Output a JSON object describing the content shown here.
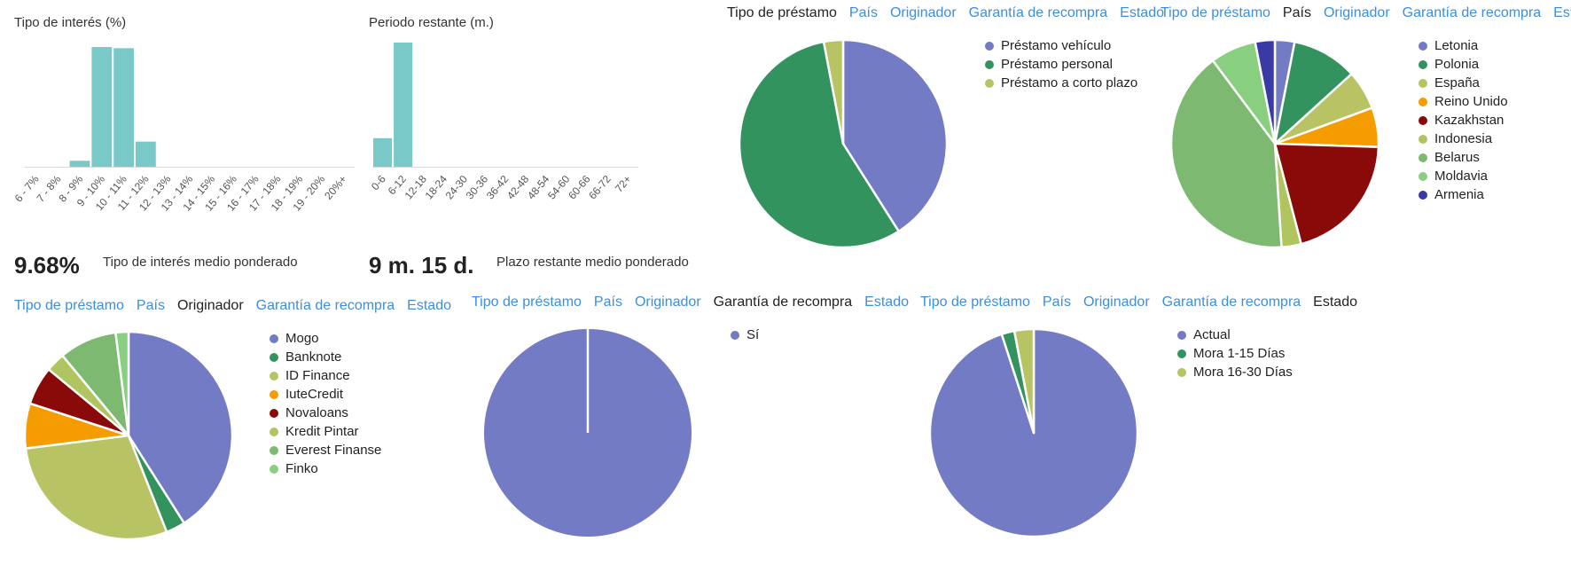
{
  "stats": [
    {
      "value": "9.68%",
      "label": "Tipo de interés medio ponderado"
    },
    {
      "value": "9 m. 15 d.",
      "label": "Plazo restante medio ponderado"
    }
  ],
  "colors": {
    "bar": "#79c9c9",
    "tab_link": "#3b8ee0",
    "tab_active": "#222222"
  },
  "chart_data": [
    {
      "type": "bar",
      "title": "Tipo de interés (%)",
      "categories": [
        "6 - 7%",
        "7 - 8%",
        "8 - 9%",
        "9 - 10%",
        "10 - 11%",
        "11 - 12%",
        "12 - 13%",
        "13 - 14%",
        "14 - 15%",
        "15 - 16%",
        "16 - 17%",
        "17 - 18%",
        "18 - 19%",
        "19 - 20%",
        "20%+"
      ],
      "values": [
        0,
        0,
        5,
        100,
        99,
        21,
        0,
        0,
        0,
        0,
        0,
        0,
        0,
        0,
        0
      ],
      "ylim": [
        0,
        100
      ],
      "grid": false
    },
    {
      "type": "bar",
      "title": "Periodo restante (m.)",
      "categories": [
        "0-6",
        "6-12",
        "12-18",
        "18-24",
        "24-30",
        "30-36",
        "36-42",
        "42-48",
        "48-54",
        "54-60",
        "60-66",
        "66-72",
        "72+"
      ],
      "values": [
        23,
        100,
        0,
        0,
        0,
        0,
        0,
        0,
        0,
        0,
        0,
        0,
        0
      ],
      "ylim": [
        0,
        100
      ],
      "grid": false
    },
    {
      "type": "pie",
      "tabs": [
        "Tipo de préstamo",
        "País",
        "Originador",
        "Garantía de recompra",
        "Estado"
      ],
      "active_tab": 0,
      "labels": [
        "Préstamo vehículo",
        "Préstamo personal",
        "Préstamo a corto plazo"
      ],
      "values": [
        41,
        56,
        3
      ],
      "colors": [
        "#737bc4",
        "#33935f",
        "#b8c463"
      ]
    },
    {
      "type": "pie",
      "tabs": [
        "Tipo de préstamo",
        "País",
        "Originador",
        "Garantía de recompra",
        "Estado"
      ],
      "active_tab": 1,
      "labels": [
        "Letonia",
        "Polonia",
        "España",
        "Reino Unido",
        "Kazakhstan",
        "Indonesia",
        "Belarus",
        "Moldavia",
        "Armenia"
      ],
      "values": [
        3,
        10,
        6,
        6,
        20,
        3,
        40,
        7,
        3
      ],
      "colors": [
        "#737bc4",
        "#33935f",
        "#b8c463",
        "#f59c00",
        "#8a0a0a",
        "#b0c460",
        "#7db971",
        "#88cf80",
        "#3a3aa7"
      ]
    },
    {
      "type": "pie",
      "tabs": [
        "Tipo de préstamo",
        "País",
        "Originador",
        "Garantía de recompra",
        "Estado"
      ],
      "active_tab": 2,
      "labels": [
        "Mogo",
        "Banknote",
        "ID Finance",
        "IuteCredit",
        "Novaloans",
        "Kredit Pintar",
        "Everest Finanse",
        "Finko"
      ],
      "values": [
        41,
        3,
        29,
        7,
        6,
        3,
        9,
        2
      ],
      "colors": [
        "#737bc4",
        "#33935f",
        "#b8c463",
        "#f59c00",
        "#8a0a0a",
        "#b0c460",
        "#7db971",
        "#88cf80"
      ]
    },
    {
      "type": "pie",
      "tabs": [
        "Tipo de préstamo",
        "País",
        "Originador",
        "Garantía de recompra",
        "Estado"
      ],
      "active_tab": 3,
      "labels": [
        "Sí"
      ],
      "values": [
        100
      ],
      "colors": [
        "#737bc4"
      ]
    },
    {
      "type": "pie",
      "tabs": [
        "Tipo de préstamo",
        "País",
        "Originador",
        "Garantía de recompra",
        "Estado"
      ],
      "active_tab": 4,
      "labels": [
        "Actual",
        "Mora 1-15 Días",
        "Mora 16-30 Días"
      ],
      "values": [
        95,
        2,
        3
      ],
      "colors": [
        "#737bc4",
        "#33935f",
        "#b8c463"
      ]
    }
  ]
}
